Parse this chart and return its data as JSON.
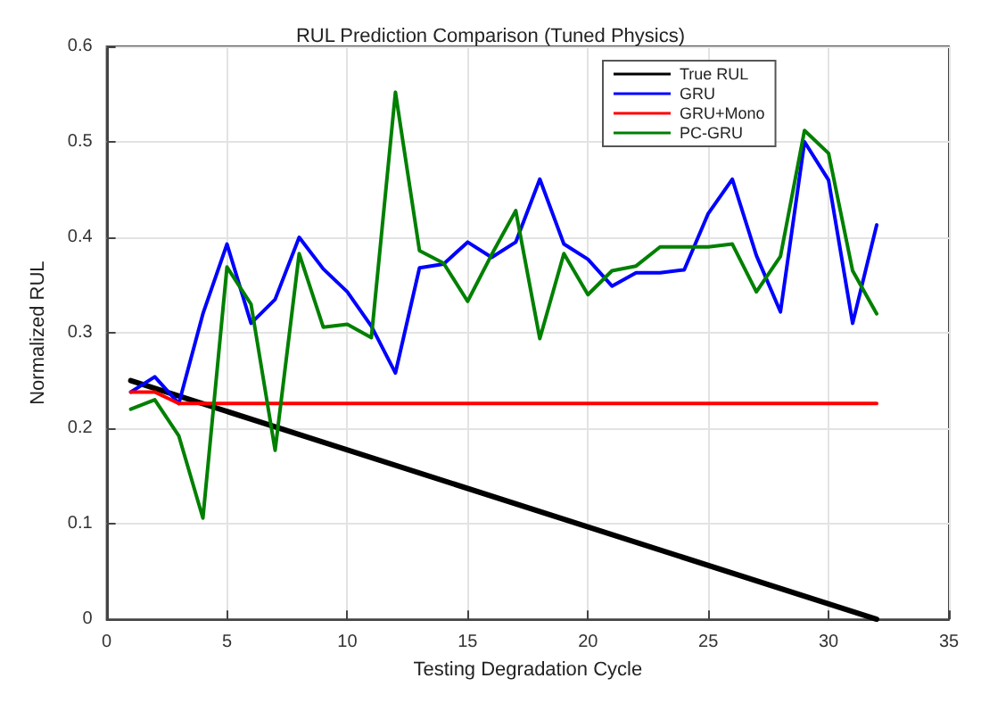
{
  "chart_data": {
    "type": "line",
    "title": "RUL Prediction Comparison (Tuned Physics)",
    "xlabel": "Testing Degradation Cycle",
    "ylabel": "Normalized RUL",
    "x": [
      1,
      2,
      3,
      4,
      5,
      6,
      7,
      8,
      9,
      10,
      11,
      12,
      13,
      14,
      15,
      16,
      17,
      18,
      19,
      20,
      21,
      22,
      23,
      24,
      25,
      26,
      27,
      28,
      29,
      30,
      31,
      32
    ],
    "series": [
      {
        "name": "True RUL",
        "color": "#000000",
        "x": [
          1,
          32
        ],
        "values": [
          0.25,
          0
        ]
      },
      {
        "name": "GRU",
        "color": "#0000ff",
        "values": [
          0.238,
          0.254,
          0.226,
          0.32,
          0.393,
          0.31,
          0.335,
          0.4,
          0.367,
          0.343,
          0.307,
          0.258,
          0.368,
          0.372,
          0.395,
          0.379,
          0.395,
          0.461,
          0.393,
          0.377,
          0.349,
          0.363,
          0.363,
          0.366,
          0.425,
          0.461,
          0.381,
          0.322,
          0.5,
          0.46,
          0.31,
          0.413
        ]
      },
      {
        "name": "GRU+Mono",
        "color": "#ff0000",
        "x": [
          1,
          2,
          3,
          32
        ],
        "values": [
          0.238,
          0.238,
          0.226,
          0.226
        ]
      },
      {
        "name": "PC-GRU",
        "color": "#008000",
        "values": [
          0.22,
          0.23,
          0.192,
          0.106,
          0.369,
          0.33,
          0.177,
          0.383,
          0.306,
          0.309,
          0.295,
          0.552,
          0.386,
          0.373,
          0.333,
          0.382,
          0.428,
          0.294,
          0.383,
          0.34,
          0.365,
          0.37,
          0.39,
          0.39,
          0.39,
          0.393,
          0.343,
          0.38,
          0.512,
          0.488,
          0.365,
          0.32
        ]
      }
    ],
    "xlim": [
      0,
      35
    ],
    "xticks": [
      0,
      5,
      10,
      15,
      20,
      25,
      30,
      35
    ],
    "ylim": [
      0,
      0.6
    ],
    "yticks": [
      0,
      0.1,
      0.2,
      0.3,
      0.4,
      0.5,
      0.6
    ],
    "grid": true,
    "legend": "top right",
    "marker": "none",
    "line_style": "solid"
  }
}
